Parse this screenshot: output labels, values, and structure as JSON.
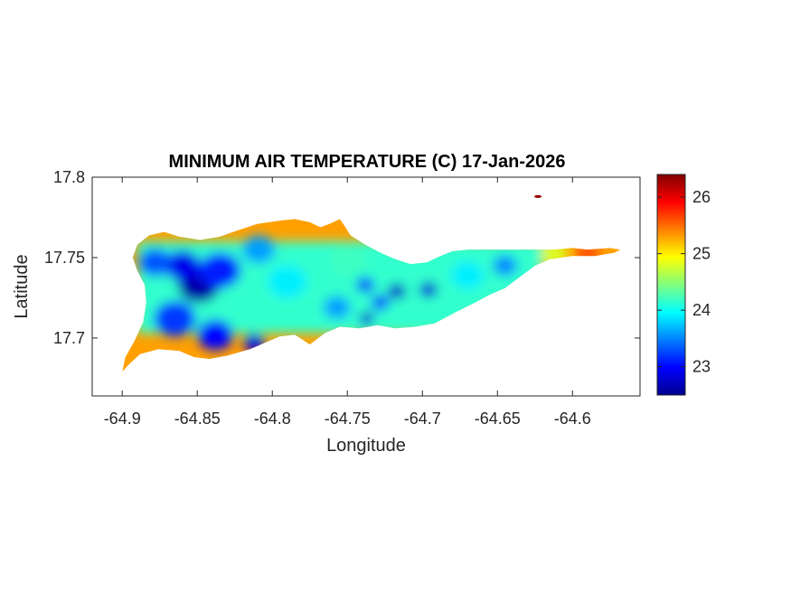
{
  "chart_data": {
    "type": "heatmap",
    "title": "MINIMUM AIR TEMPERATURE (C) 17-Jan-2026",
    "xlabel": "Longitude",
    "ylabel": "Latitude",
    "xlim": [
      -64.92,
      -64.555
    ],
    "ylim": [
      17.664,
      17.8
    ],
    "x_ticks": [
      -64.9,
      -64.85,
      -64.8,
      -64.75,
      -64.7,
      -64.65,
      -64.6
    ],
    "x_tick_labels": [
      "-64.9",
      "-64.85",
      "-64.8",
      "-64.75",
      "-64.7",
      "-64.65",
      "-64.6"
    ],
    "y_ticks": [
      17.7,
      17.75,
      17.8
    ],
    "y_tick_labels": [
      "17.7",
      "17.75",
      "17.8"
    ],
    "colormap": "jet",
    "colorbar": {
      "range": [
        22.5,
        26.4
      ],
      "ticks": [
        23,
        24,
        25,
        26
      ],
      "tick_labels": [
        "23",
        "24",
        "25",
        "26"
      ],
      "location": "right"
    },
    "grid": false,
    "coast_temperature": 25.3,
    "island_outline": [
      [
        -64.9,
        17.679
      ],
      [
        -64.895,
        17.684
      ],
      [
        -64.888,
        17.69
      ],
      [
        -64.876,
        17.693
      ],
      [
        -64.862,
        17.692
      ],
      [
        -64.852,
        17.688
      ],
      [
        -64.842,
        17.687
      ],
      [
        -64.83,
        17.689
      ],
      [
        -64.815,
        17.693
      ],
      [
        -64.805,
        17.697
      ],
      [
        -64.795,
        17.701
      ],
      [
        -64.785,
        17.702
      ],
      [
        -64.775,
        17.696
      ],
      [
        -64.765,
        17.703
      ],
      [
        -64.755,
        17.707
      ],
      [
        -64.742,
        17.706
      ],
      [
        -64.73,
        17.708
      ],
      [
        -64.718,
        17.706
      ],
      [
        -64.705,
        17.707
      ],
      [
        -64.692,
        17.709
      ],
      [
        -64.678,
        17.716
      ],
      [
        -64.665,
        17.722
      ],
      [
        -64.655,
        17.727
      ],
      [
        -64.645,
        17.731
      ],
      [
        -64.635,
        17.738
      ],
      [
        -64.625,
        17.745
      ],
      [
        -64.615,
        17.749
      ],
      [
        -64.6,
        17.751
      ],
      [
        -64.585,
        17.751
      ],
      [
        -64.572,
        17.753
      ],
      [
        -64.568,
        17.755
      ],
      [
        -64.575,
        17.756
      ],
      [
        -64.59,
        17.755
      ],
      [
        -64.6,
        17.756
      ],
      [
        -64.612,
        17.755
      ],
      [
        -64.63,
        17.755
      ],
      [
        -64.65,
        17.755
      ],
      [
        -64.67,
        17.755
      ],
      [
        -64.68,
        17.754
      ],
      [
        -64.688,
        17.751
      ],
      [
        -64.697,
        17.747
      ],
      [
        -64.708,
        17.746
      ],
      [
        -64.718,
        17.749
      ],
      [
        -64.728,
        17.753
      ],
      [
        -64.738,
        17.758
      ],
      [
        -64.748,
        17.764
      ],
      [
        -64.752,
        17.77
      ],
      [
        -64.755,
        17.774
      ],
      [
        -64.762,
        17.771
      ],
      [
        -64.768,
        17.769
      ],
      [
        -64.775,
        17.772
      ],
      [
        -64.785,
        17.774
      ],
      [
        -64.795,
        17.773
      ],
      [
        -64.81,
        17.771
      ],
      [
        -64.823,
        17.767
      ],
      [
        -64.835,
        17.763
      ],
      [
        -64.848,
        17.761
      ],
      [
        -64.862,
        17.763
      ],
      [
        -64.872,
        17.766
      ],
      [
        -64.882,
        17.764
      ],
      [
        -64.89,
        17.758
      ],
      [
        -64.893,
        17.75
      ],
      [
        -64.89,
        17.742
      ],
      [
        -64.885,
        17.733
      ],
      [
        -64.884,
        17.722
      ],
      [
        -64.886,
        17.71
      ],
      [
        -64.892,
        17.698
      ],
      [
        -64.898,
        17.688
      ]
    ],
    "islets": [
      {
        "x": -64.623,
        "y": 17.788,
        "temperature": 26.3
      }
    ],
    "temperature_field_cells": [
      {
        "x": -64.849,
        "y": 17.733,
        "temperature": 22.6,
        "spread": 0.014
      },
      {
        "x": -64.86,
        "y": 17.745,
        "temperature": 22.9,
        "spread": 0.012
      },
      {
        "x": -64.835,
        "y": 17.742,
        "temperature": 23.1,
        "spread": 0.014
      },
      {
        "x": -64.865,
        "y": 17.712,
        "temperature": 23.2,
        "spread": 0.014
      },
      {
        "x": -64.838,
        "y": 17.702,
        "temperature": 23.0,
        "spread": 0.012
      },
      {
        "x": -64.812,
        "y": 17.697,
        "temperature": 22.9,
        "spread": 0.007
      },
      {
        "x": -64.878,
        "y": 17.747,
        "temperature": 23.3,
        "spread": 0.011
      },
      {
        "x": -64.809,
        "y": 17.755,
        "temperature": 23.6,
        "spread": 0.011
      },
      {
        "x": -64.79,
        "y": 17.735,
        "temperature": 23.9,
        "spread": 0.013
      },
      {
        "x": -64.757,
        "y": 17.719,
        "temperature": 23.6,
        "spread": 0.009
      },
      {
        "x": -64.738,
        "y": 17.733,
        "temperature": 23.2,
        "spread": 0.006
      },
      {
        "x": -64.737,
        "y": 17.712,
        "temperature": 22.8,
        "spread": 0.005
      },
      {
        "x": -64.717,
        "y": 17.729,
        "temperature": 22.75,
        "spread": 0.006
      },
      {
        "x": -64.696,
        "y": 17.73,
        "temperature": 22.8,
        "spread": 0.006
      },
      {
        "x": -64.728,
        "y": 17.722,
        "temperature": 23.2,
        "spread": 0.006
      },
      {
        "x": -64.67,
        "y": 17.739,
        "temperature": 23.9,
        "spread": 0.011
      },
      {
        "x": -64.645,
        "y": 17.745,
        "temperature": 23.5,
        "spread": 0.008
      },
      {
        "x": -64.75,
        "y": 17.748,
        "temperature": 24.2,
        "spread": 0.012
      },
      {
        "x": -64.612,
        "y": 17.752,
        "temperature": 24.8,
        "spread": 0.009
      },
      {
        "x": -64.59,
        "y": 17.753,
        "temperature": 25.6,
        "spread": 0.008
      }
    ]
  }
}
